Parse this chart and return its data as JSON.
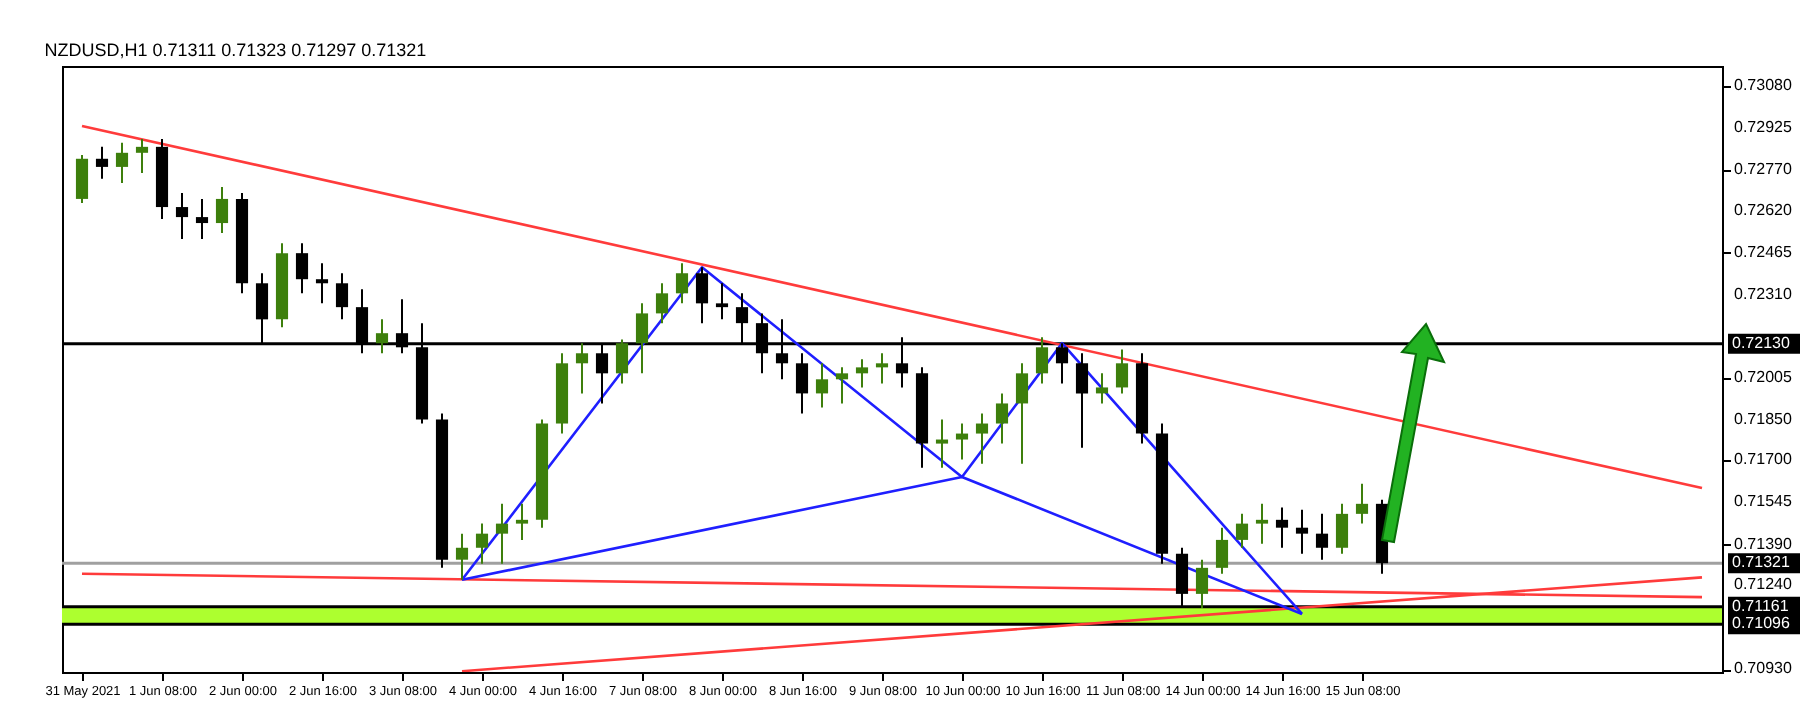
{
  "chart_data": {
    "type": "candlestick",
    "title": "NZDUSD,H1  0.71311 0.71323 0.71297 0.71321",
    "categories": [
      "31 May 2021",
      null,
      null,
      null,
      "1 Jun 08:00",
      null,
      null,
      null,
      "2 Jun 00:00",
      null,
      null,
      null,
      "2 Jun 16:00",
      null,
      null,
      null,
      "3 Jun 08:00",
      null,
      null,
      null,
      "4 Jun 00:00",
      null,
      null,
      null,
      "4 Jun 16:00",
      null,
      null,
      null,
      "7 Jun 08:00",
      null,
      null,
      null,
      "8 Jun 00:00",
      null,
      null,
      null,
      "8 Jun 16:00",
      null,
      null,
      null,
      "9 Jun 08:00",
      null,
      null,
      null,
      "10 Jun 00:00",
      null,
      null,
      null,
      "10 Jun 16:00",
      null,
      null,
      null,
      "11 Jun 08:00",
      null,
      null,
      null,
      "14 Jun 00:00",
      null,
      null,
      null,
      "14 Jun 16:00",
      null,
      null,
      null,
      "15 Jun 08:00",
      null,
      null,
      null,
      null,
      null,
      null,
      null,
      null,
      null,
      null,
      null,
      null,
      null,
      null,
      null,
      null,
      null
    ],
    "ohlc": [
      [
        0.72664,
        0.72826,
        0.72649,
        0.72812
      ],
      [
        0.72812,
        0.72856,
        0.72738,
        0.72782
      ],
      [
        0.72782,
        0.72871,
        0.72723,
        0.72834
      ],
      [
        0.72834,
        0.72885,
        0.7276,
        0.72856
      ],
      [
        0.72856,
        0.72885,
        0.7259,
        0.72634
      ],
      [
        0.72634,
        0.72686,
        0.72516,
        0.72597
      ],
      [
        0.72597,
        0.72664,
        0.72516,
        0.72575
      ],
      [
        0.72575,
        0.72708,
        0.72538,
        0.72664
      ],
      [
        0.72664,
        0.72686,
        0.72316,
        0.72353
      ],
      [
        0.72353,
        0.7239,
        0.72132,
        0.7222
      ],
      [
        0.7222,
        0.72501,
        0.72191,
        0.72464
      ],
      [
        0.72464,
        0.72501,
        0.72316,
        0.72368
      ],
      [
        0.72368,
        0.72427,
        0.72279,
        0.72353
      ],
      [
        0.72353,
        0.7239,
        0.7222,
        0.72265
      ],
      [
        0.72265,
        0.72331,
        0.72095,
        0.72132
      ],
      [
        0.72132,
        0.7222,
        0.72095,
        0.72169
      ],
      [
        0.72169,
        0.72294,
        0.72095,
        0.72117
      ],
      [
        0.72117,
        0.72206,
        0.71836,
        0.71851
      ],
      [
        0.71851,
        0.71873,
        0.71304,
        0.71334
      ],
      [
        0.71334,
        0.7143,
        0.7126,
        0.71378
      ],
      [
        0.71378,
        0.71467,
        0.71319,
        0.7143
      ],
      [
        0.7143,
        0.7154,
        0.71319,
        0.71467
      ],
      [
        0.71467,
        0.7154,
        0.71407,
        0.71481
      ],
      [
        0.71481,
        0.71851,
        0.71452,
        0.71836
      ],
      [
        0.71836,
        0.72095,
        0.71799,
        0.72058
      ],
      [
        0.72058,
        0.72132,
        0.71947,
        0.72095
      ],
      [
        0.72095,
        0.72132,
        0.7191,
        0.72021
      ],
      [
        0.72021,
        0.72146,
        0.71984,
        0.72132
      ],
      [
        0.72132,
        0.72279,
        0.72021,
        0.72242
      ],
      [
        0.72242,
        0.72353,
        0.72206,
        0.72316
      ],
      [
        0.72316,
        0.72427,
        0.72279,
        0.7239
      ],
      [
        0.7239,
        0.72412,
        0.72206,
        0.72279
      ],
      [
        0.72279,
        0.72353,
        0.7222,
        0.72265
      ],
      [
        0.72265,
        0.72316,
        0.72132,
        0.72206
      ],
      [
        0.72206,
        0.72242,
        0.72021,
        0.72095
      ],
      [
        0.72095,
        0.7222,
        0.71999,
        0.72058
      ],
      [
        0.72058,
        0.72095,
        0.71873,
        0.71947
      ],
      [
        0.71947,
        0.72058,
        0.71895,
        0.71999
      ],
      [
        0.71999,
        0.72043,
        0.7191,
        0.72021
      ],
      [
        0.72021,
        0.72073,
        0.71969,
        0.72043
      ],
      [
        0.72043,
        0.72095,
        0.71984,
        0.72058
      ],
      [
        0.72058,
        0.72154,
        0.71969,
        0.72021
      ],
      [
        0.72021,
        0.72043,
        0.71673,
        0.71762
      ],
      [
        0.71762,
        0.71851,
        0.71673,
        0.71777
      ],
      [
        0.71777,
        0.71836,
        0.71703,
        0.71799
      ],
      [
        0.71799,
        0.71873,
        0.71688,
        0.71836
      ],
      [
        0.71836,
        0.71947,
        0.71762,
        0.7191
      ],
      [
        0.7191,
        0.72058,
        0.71688,
        0.72021
      ],
      [
        0.72021,
        0.72154,
        0.71984,
        0.72117
      ],
      [
        0.72117,
        0.72132,
        0.71984,
        0.72058
      ],
      [
        0.72058,
        0.72095,
        0.71747,
        0.71947
      ],
      [
        0.71947,
        0.72021,
        0.7191,
        0.71969
      ],
      [
        0.71969,
        0.72109,
        0.71947,
        0.72058
      ],
      [
        0.72058,
        0.72095,
        0.71762,
        0.71799
      ],
      [
        0.71799,
        0.71836,
        0.71319,
        0.71356
      ],
      [
        0.71356,
        0.71378,
        0.71156,
        0.71208
      ],
      [
        0.71208,
        0.71334,
        0.71156,
        0.71304
      ],
      [
        0.71304,
        0.71452,
        0.71282,
        0.71407
      ],
      [
        0.71407,
        0.71503,
        0.71378,
        0.71467
      ],
      [
        0.71467,
        0.7154,
        0.71393,
        0.71481
      ],
      [
        0.71481,
        0.71526,
        0.71378,
        0.71452
      ],
      [
        0.71452,
        0.71518,
        0.71356,
        0.7143
      ],
      [
        0.7143,
        0.71503,
        0.71334,
        0.71378
      ],
      [
        0.71378,
        0.7154,
        0.71356,
        0.71503
      ],
      [
        0.71503,
        0.71614,
        0.71467,
        0.7154
      ],
      [
        0.7154,
        0.71555,
        0.71282,
        0.71321
      ],
      null,
      null,
      null,
      null,
      null,
      null,
      null,
      null,
      null,
      null,
      null,
      null,
      null,
      null,
      null,
      null
    ],
    "colors": [
      "#3d7f0c",
      "#000000",
      "#3d7f0c",
      "#3d7f0c",
      "#000000",
      "#000000",
      "#000000",
      "#3d7f0c",
      "#000000",
      "#000000",
      "#3d7f0c",
      "#000000",
      "#000000",
      "#000000",
      "#000000",
      "#3d7f0c",
      "#000000",
      "#000000",
      "#000000",
      "#3d7f0c",
      "#3d7f0c",
      "#3d7f0c",
      "#3d7f0c",
      "#3d7f0c",
      "#3d7f0c",
      "#3d7f0c",
      "#000000",
      "#3d7f0c",
      "#3d7f0c",
      "#3d7f0c",
      "#3d7f0c",
      "#000000",
      "#000000",
      "#000000",
      "#000000",
      "#000000",
      "#000000",
      "#3d7f0c",
      "#3d7f0c",
      "#3d7f0c",
      "#3d7f0c",
      "#000000",
      "#000000",
      "#3d7f0c",
      "#3d7f0c",
      "#3d7f0c",
      "#3d7f0c",
      "#3d7f0c",
      "#3d7f0c",
      "#000000",
      "#000000",
      "#3d7f0c",
      "#3d7f0c",
      "#000000",
      "#000000",
      "#000000",
      "#3d7f0c",
      "#3d7f0c",
      "#3d7f0c",
      "#3d7f0c",
      "#000000",
      "#000000",
      "#000000",
      "#3d7f0c",
      "#3d7f0c",
      "#000000",
      null,
      null,
      null,
      null,
      null,
      null,
      null,
      null,
      null,
      null,
      null,
      null,
      null,
      null,
      null,
      null
    ],
    "series": [
      {
        "type": "line",
        "color": "#ff3b3b",
        "values": [
          0.72933,
          null,
          null,
          null,
          null,
          null,
          null,
          null,
          null,
          null,
          null,
          null,
          null,
          null,
          null,
          null,
          null,
          null,
          null,
          null,
          null,
          null,
          null,
          null,
          null,
          null,
          null,
          null,
          null,
          null,
          null,
          null,
          null,
          null,
          null,
          null,
          null,
          null,
          null,
          null,
          null,
          null,
          null,
          null,
          null,
          null,
          null,
          null,
          null,
          null,
          null,
          null,
          null,
          null,
          null,
          null,
          null,
          null,
          null,
          null,
          null,
          null,
          null,
          null,
          null,
          null,
          null,
          null,
          null,
          null,
          null,
          null,
          null,
          null,
          null,
          null,
          null,
          null,
          null,
          null,
          null,
          0.71598
        ]
      },
      {
        "type": "line",
        "color": "#ff3b3b",
        "values": [
          0.71282,
          null,
          null,
          null,
          null,
          null,
          null,
          null,
          null,
          null,
          null,
          null,
          null,
          null,
          null,
          null,
          null,
          null,
          null,
          null,
          null,
          null,
          null,
          null,
          null,
          null,
          null,
          null,
          null,
          null,
          null,
          null,
          null,
          null,
          null,
          null,
          null,
          null,
          null,
          null,
          null,
          null,
          null,
          null,
          null,
          null,
          null,
          null,
          null,
          null,
          null,
          null,
          null,
          null,
          null,
          null,
          null,
          null,
          null,
          null,
          null,
          null,
          null,
          null,
          null,
          null,
          null,
          null,
          null,
          null,
          null,
          null,
          null,
          null,
          null,
          null,
          null,
          null,
          null,
          null,
          null,
          0.71196
        ]
      },
      {
        "type": "line",
        "color": "#ff3b3b",
        "values": [
          null,
          null,
          null,
          null,
          null,
          null,
          null,
          null,
          null,
          null,
          null,
          null,
          null,
          null,
          null,
          null,
          null,
          null,
          null,
          0.70923,
          null,
          null,
          null,
          null,
          null,
          null,
          null,
          null,
          null,
          null,
          null,
          null,
          null,
          null,
          null,
          null,
          null,
          null,
          null,
          null,
          null,
          null,
          null,
          null,
          null,
          null,
          null,
          null,
          null,
          null,
          null,
          null,
          null,
          null,
          null,
          null,
          null,
          null,
          null,
          null,
          null,
          null,
          null,
          null,
          null,
          null,
          null,
          null,
          null,
          null,
          null,
          null,
          null,
          null,
          null,
          null,
          null,
          null,
          null,
          null,
          null,
          0.71269
        ]
      },
      {
        "type": "line",
        "color": "#1f1fff",
        "values": [
          null,
          null,
          null,
          null,
          null,
          null,
          null,
          null,
          null,
          null,
          null,
          null,
          null,
          null,
          null,
          null,
          null,
          null,
          null,
          0.7126,
          null,
          null,
          null,
          null,
          null,
          null,
          null,
          null,
          null,
          null,
          null,
          0.72412,
          null,
          null,
          null,
          null,
          null,
          null,
          null,
          null,
          null,
          null,
          null,
          null,
          0.71639,
          null,
          null,
          null,
          null,
          0.72132,
          null,
          null,
          null,
          null,
          null,
          null,
          null,
          null,
          null,
          null,
          null,
          0.71134,
          null,
          null,
          null,
          null,
          null,
          null,
          null,
          null,
          null,
          null,
          null,
          null,
          null,
          null,
          null,
          null,
          null,
          null,
          null,
          null
        ]
      },
      {
        "type": "line",
        "color": "#1f1fff",
        "values": [
          null,
          null,
          null,
          null,
          null,
          null,
          null,
          null,
          null,
          null,
          null,
          null,
          null,
          null,
          null,
          null,
          null,
          null,
          null,
          0.7126,
          null,
          null,
          null,
          null,
          null,
          null,
          null,
          null,
          null,
          null,
          null,
          null,
          null,
          null,
          null,
          null,
          null,
          null,
          null,
          null,
          null,
          null,
          null,
          null,
          0.71639,
          null,
          null,
          null,
          null,
          null,
          null,
          null,
          null,
          null,
          null,
          null,
          null,
          null,
          null,
          null,
          null,
          0.71134,
          null,
          null,
          null,
          null,
          null,
          null,
          null,
          null,
          null,
          null,
          null,
          null,
          null,
          null,
          null,
          null,
          null,
          null,
          null,
          null
        ]
      }
    ],
    "ref_lines": [
      {
        "axis": "y",
        "value": 0.7213,
        "label": "0.72130",
        "color": "#000000"
      },
      {
        "axis": "y",
        "value": 0.71321,
        "label": "0.71321",
        "color": "#a0a0a0"
      },
      {
        "axis": "y",
        "value": 0.71161,
        "label": "0.71161",
        "color": "#000000"
      },
      {
        "axis": "y",
        "value": 0.71096,
        "label": "0.71096",
        "color": "#000000"
      }
    ],
    "bands": [
      {
        "axis": "y",
        "from": 0.71096,
        "to": 0.71161,
        "color": "#adff2f"
      }
    ],
    "ylim": [
      0.7092,
      0.73154
    ],
    "yticks": [
      {
        "value": 0.7093,
        "label": "0.70930"
      },
      {
        "value": 0.7124,
        "label": "0.71240"
      },
      {
        "value": 0.7139,
        "label": "0.71390"
      },
      0.71545,
      {
        "value": 0.717,
        "label": "0.71700"
      },
      {
        "value": 0.7185,
        "label": "0.71850"
      },
      0.72005,
      {
        "value": 0.7231,
        "label": "0.72310"
      },
      0.72465,
      {
        "value": 0.7262,
        "label": "0.72620"
      },
      {
        "value": 0.7277,
        "label": "0.72770"
      },
      0.72925,
      {
        "value": 0.7308,
        "label": "0.73080"
      }
    ]
  }
}
